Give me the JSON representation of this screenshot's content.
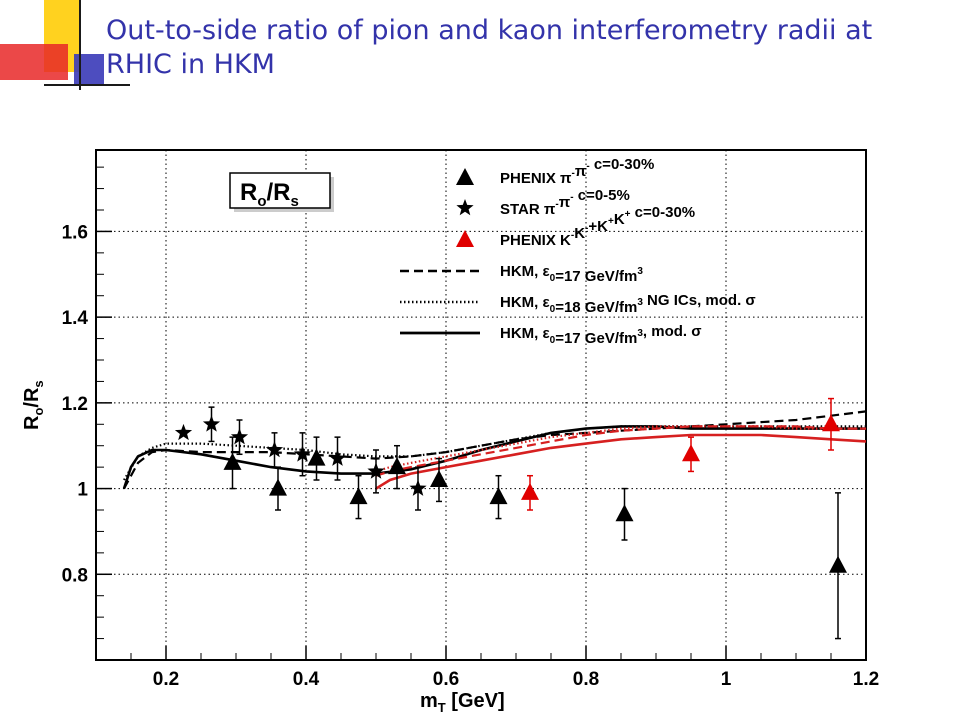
{
  "slide": {
    "title": "Out-to-side ratio of pion and kaon interferometry radii at RHIC in HKM"
  },
  "colors": {
    "title": "#3333aa",
    "deco_yellow": "#ffd21f",
    "deco_red": "#e82828",
    "deco_blue": "#3a3ab8",
    "phenix_kaon": "#e00000",
    "hkm_red": "#d62020"
  },
  "chart_data": {
    "type": "scatter",
    "inset_label": {
      "main": "R",
      "sub1": "o",
      "slash": "/R",
      "sub2": "s"
    },
    "xlabel": {
      "main": "m",
      "sub": "T",
      "rest": " [GeV]"
    },
    "ylabel": {
      "main": "R",
      "sub1": "o",
      "slash": "/R",
      "sub2": "s"
    },
    "xlim": [
      0.1,
      1.2
    ],
    "ylim": [
      0.6,
      1.79
    ],
    "xticks": [
      "0.2",
      "0.4",
      "0.6",
      "0.8",
      "1",
      "1.2"
    ],
    "xtick_values": [
      0.2,
      0.4,
      0.6,
      0.8,
      1.0,
      1.2
    ],
    "yticks": [
      "0.8",
      "1",
      "1.2",
      "1.4",
      "1.6"
    ],
    "ytick_values": [
      0.8,
      1.0,
      1.2,
      1.4,
      1.6
    ],
    "grid": true,
    "legend_position": "top-right",
    "series": [
      {
        "name": "PHENIX π⁻π⁻ c=0-30%",
        "legend_parts": [
          "PHENIX ",
          "π",
          "-",
          "π",
          "-",
          " c=0-30%"
        ],
        "marker": "triangle",
        "color": "#000000",
        "points": [
          {
            "x": 0.295,
            "y": 1.06,
            "err": 0.06
          },
          {
            "x": 0.36,
            "y": 1.0,
            "err": 0.05
          },
          {
            "x": 0.415,
            "y": 1.07,
            "err": 0.05
          },
          {
            "x": 0.475,
            "y": 0.98,
            "err": 0.05
          },
          {
            "x": 0.53,
            "y": 1.05,
            "err": 0.05
          },
          {
            "x": 0.59,
            "y": 1.02,
            "err": 0.05
          },
          {
            "x": 0.675,
            "y": 0.98,
            "err": 0.05
          },
          {
            "x": 0.855,
            "y": 0.94,
            "err": 0.06
          },
          {
            "x": 1.16,
            "y": 0.82,
            "err": 0.17
          }
        ]
      },
      {
        "name": "STAR π⁻π⁻ c=0-5%",
        "legend_parts": [
          "STAR ",
          "π",
          "-",
          "π",
          "-",
          " c=0-5%"
        ],
        "marker": "star",
        "color": "#000000",
        "points": [
          {
            "x": 0.225,
            "y": 1.13,
            "err": 0.0
          },
          {
            "x": 0.265,
            "y": 1.15,
            "err": 0.04
          },
          {
            "x": 0.305,
            "y": 1.12,
            "err": 0.04
          },
          {
            "x": 0.355,
            "y": 1.09,
            "err": 0.04
          },
          {
            "x": 0.395,
            "y": 1.08,
            "err": 0.05
          },
          {
            "x": 0.445,
            "y": 1.07,
            "err": 0.05
          },
          {
            "x": 0.5,
            "y": 1.04,
            "err": 0.05
          },
          {
            "x": 0.56,
            "y": 1.0,
            "err": 0.05
          }
        ]
      },
      {
        "name": "PHENIX K⁻K⁻+K⁺K⁺ c=0-30%",
        "legend_parts": [
          "PHENIX K",
          "-",
          "K",
          "-",
          "+K",
          "+",
          "K",
          "+",
          " c=0-30%"
        ],
        "marker": "triangle",
        "color": "#e00000",
        "points": [
          {
            "x": 0.72,
            "y": 0.99,
            "err": 0.04
          },
          {
            "x": 0.95,
            "y": 1.08,
            "err": 0.04
          },
          {
            "x": 1.15,
            "y": 1.15,
            "err": 0.06
          }
        ]
      }
    ],
    "curves": [
      {
        "name": "HKM, ε0=17 GeV/fm3",
        "legend_parts": [
          "HKM, ",
          "ε",
          "0",
          "=17 GeV/fm",
          "3",
          ""
        ],
        "style": "dashed",
        "color": "#000000",
        "x": [
          0.14,
          0.16,
          0.18,
          0.2,
          0.25,
          0.3,
          0.35,
          0.4,
          0.45,
          0.5,
          0.55,
          0.6,
          0.65,
          0.7,
          0.75,
          0.8,
          0.85,
          0.9,
          0.95,
          1.0,
          1.05,
          1.1,
          1.15,
          1.2
        ],
        "y": [
          1.0,
          1.06,
          1.085,
          1.09,
          1.085,
          1.085,
          1.085,
          1.08,
          1.075,
          1.07,
          1.075,
          1.085,
          1.1,
          1.115,
          1.125,
          1.13,
          1.135,
          1.14,
          1.145,
          1.15,
          1.155,
          1.16,
          1.17,
          1.18
        ]
      },
      {
        "name": "HKM, ε0=18 GeV/fm3 NG ICs, mod. σ",
        "legend_parts": [
          "HKM, ",
          "ε",
          "0",
          "=18 GeV/fm",
          "3",
          " NG ICs, mod. σ"
        ],
        "style": "dotted",
        "color": "#000000",
        "x": [
          0.14,
          0.16,
          0.18,
          0.2,
          0.25,
          0.3,
          0.35,
          0.4,
          0.45,
          0.5,
          0.55,
          0.6,
          0.65,
          0.7,
          0.75,
          0.8,
          0.85,
          0.9,
          0.95,
          1.0,
          1.05,
          1.1,
          1.15,
          1.2
        ],
        "y": [
          1.02,
          1.075,
          1.095,
          1.105,
          1.105,
          1.1,
          1.095,
          1.09,
          1.08,
          1.075,
          1.075,
          1.085,
          1.1,
          1.115,
          1.13,
          1.14,
          1.145,
          1.145,
          1.145,
          1.145,
          1.145,
          1.145,
          1.145,
          1.145
        ]
      },
      {
        "name": "HKM, ε0=17 GeV/fm3, mod. σ",
        "legend_parts": [
          "HKM, ",
          "ε",
          "0",
          "=17 GeV/fm",
          "3",
          ", mod. σ"
        ],
        "style": "solid",
        "color": "#000000",
        "x": [
          0.14,
          0.15,
          0.16,
          0.18,
          0.2,
          0.25,
          0.3,
          0.35,
          0.4,
          0.45,
          0.5,
          0.55,
          0.6,
          0.65,
          0.7,
          0.75,
          0.8,
          0.85,
          0.9,
          0.95,
          1.0,
          1.05,
          1.1,
          1.15,
          1.2
        ],
        "y": [
          1.0,
          1.05,
          1.075,
          1.09,
          1.09,
          1.08,
          1.065,
          1.05,
          1.04,
          1.035,
          1.035,
          1.045,
          1.065,
          1.09,
          1.11,
          1.13,
          1.14,
          1.145,
          1.145,
          1.14,
          1.14,
          1.14,
          1.14,
          1.14,
          1.14
        ]
      },
      {
        "name": "HKM red solid",
        "style": "solid",
        "color": "#d62020",
        "x": [
          0.5,
          0.52,
          0.55,
          0.6,
          0.65,
          0.7,
          0.75,
          0.8,
          0.85,
          0.9,
          0.95,
          1.0,
          1.05,
          1.1,
          1.15,
          1.2
        ],
        "y": [
          1.0,
          1.02,
          1.035,
          1.05,
          1.065,
          1.08,
          1.095,
          1.105,
          1.115,
          1.12,
          1.125,
          1.125,
          1.125,
          1.12,
          1.115,
          1.11
        ]
      },
      {
        "name": "HKM red dashed",
        "style": "dashed",
        "color": "#d62020",
        "x": [
          0.5,
          0.52,
          0.55,
          0.6,
          0.65,
          0.7,
          0.75,
          0.8,
          0.85,
          0.9,
          0.95,
          1.0,
          1.05,
          1.1,
          1.15,
          1.2
        ],
        "y": [
          1.03,
          1.04,
          1.05,
          1.065,
          1.08,
          1.095,
          1.11,
          1.125,
          1.135,
          1.14,
          1.145,
          1.145,
          1.145,
          1.145,
          1.14,
          1.14
        ]
      },
      {
        "name": "HKM red dotted",
        "style": "dotted",
        "color": "#d62020",
        "x": [
          0.5,
          0.52,
          0.55,
          0.6,
          0.65,
          0.7,
          0.75,
          0.8,
          0.85,
          0.9,
          0.95,
          1.0,
          1.05,
          1.1,
          1.15,
          1.2
        ],
        "y": [
          1.04,
          1.05,
          1.06,
          1.075,
          1.09,
          1.105,
          1.12,
          1.13,
          1.14,
          1.145,
          1.145,
          1.145,
          1.145,
          1.14,
          1.14,
          1.14
        ]
      }
    ]
  }
}
